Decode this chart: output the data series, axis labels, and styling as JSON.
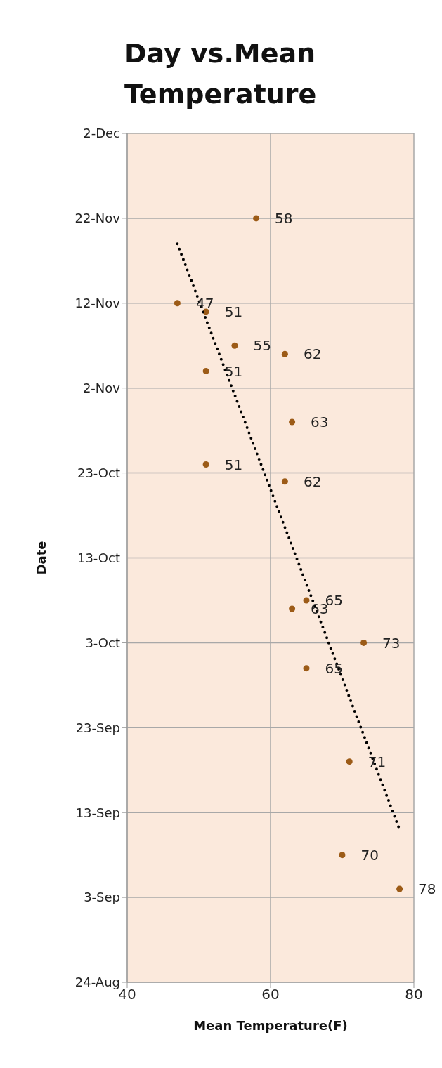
{
  "chart_data": {
    "type": "scatter",
    "orientation": "horizontal",
    "title": "Day vs.Mean Temperature",
    "xlabel": "Mean Temperature(F)",
    "ylabel": "Date",
    "xlim": [
      40,
      80
    ],
    "xticks": [
      40,
      60,
      80
    ],
    "ylim": [
      "--08-24",
      "--12-02"
    ],
    "yticks": [
      {
        "value": "--08-24",
        "label": "24-Aug"
      },
      {
        "value": "--09-03",
        "label": "3-Sep"
      },
      {
        "value": "--09-13",
        "label": "13-Sep"
      },
      {
        "value": "--09-23",
        "label": "23-Sep"
      },
      {
        "value": "--10-03",
        "label": "3-Oct"
      },
      {
        "value": "--10-13",
        "label": "13-Oct"
      },
      {
        "value": "--10-23",
        "label": "23-Oct"
      },
      {
        "value": "--11-02",
        "label": "2-Nov"
      },
      {
        "value": "--11-12",
        "label": "12-Nov"
      },
      {
        "value": "--11-22",
        "label": "22-Nov"
      },
      {
        "value": "--12-02",
        "label": "2-Dec"
      }
    ],
    "grid": true,
    "legend": false,
    "series": [
      {
        "type": "scatter",
        "color": "#9c5b17",
        "marker": "circle",
        "data_labels": true,
        "values": [
          58,
          47,
          51,
          55,
          62,
          51,
          63,
          51,
          62,
          65,
          63,
          73,
          65,
          71,
          70,
          78
        ],
        "x": [
          "--11-22",
          "--11-12",
          "--11-11",
          "--11-07",
          "--11-06",
          "--11-04",
          "--10-29",
          "--10-24",
          "--10-22",
          "--10-08",
          "--10-07",
          "--10-03",
          "--09-30",
          "--09-19",
          "--09-08",
          "--09-04"
        ]
      },
      {
        "type": "line",
        "color": "#000000",
        "marker": "none",
        "line_style": "dotted",
        "values": [
          47,
          78
        ],
        "x": [
          "--11-19",
          "--09-11"
        ]
      }
    ]
  }
}
